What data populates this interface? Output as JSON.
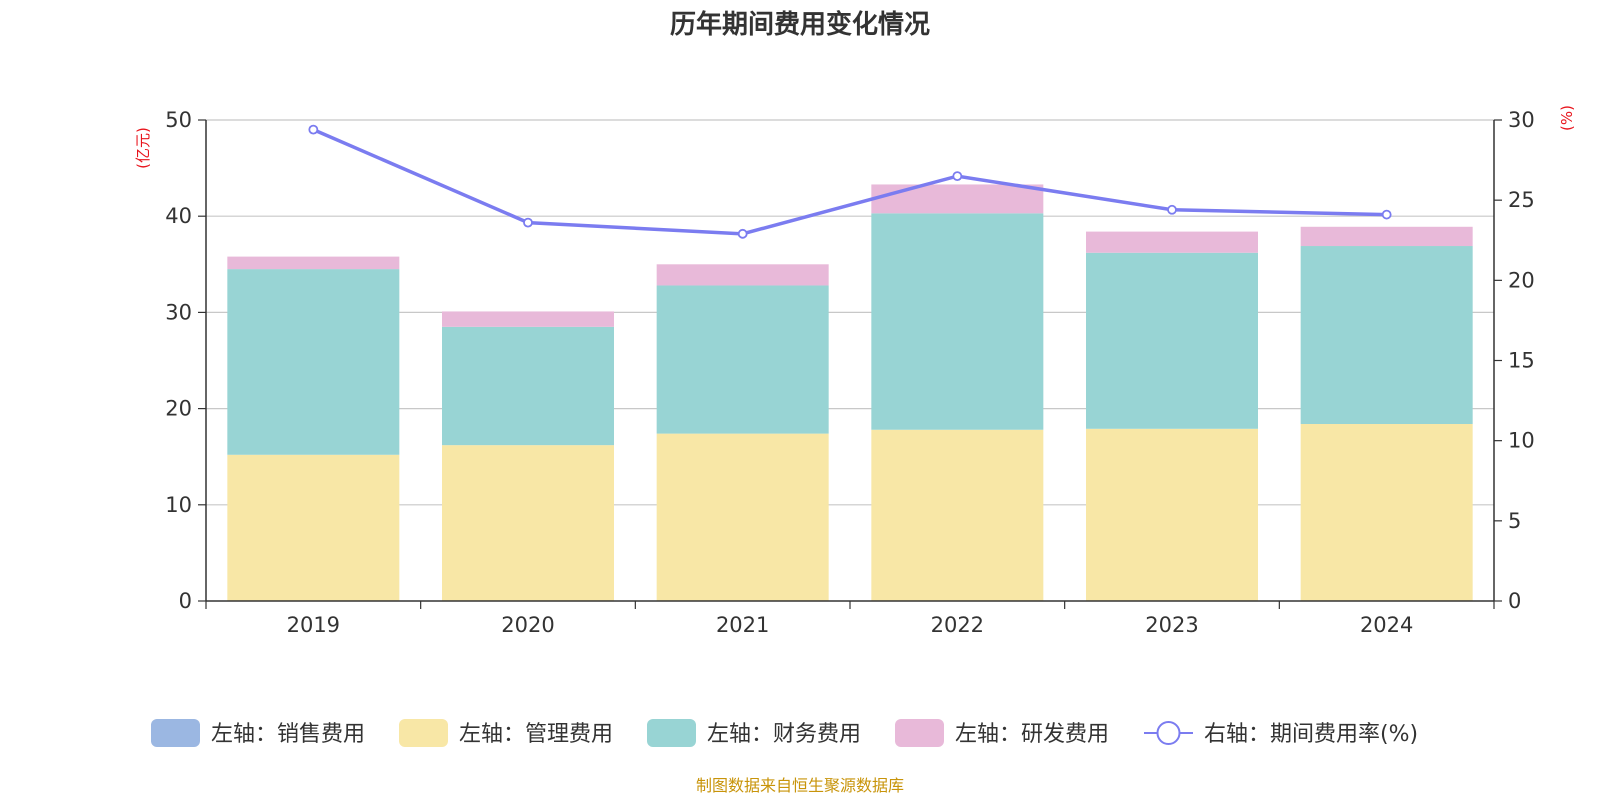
{
  "chart_data": {
    "type": "bar",
    "stacked": true,
    "title": "历年期间费用变化情况",
    "categories": [
      "2019",
      "2020",
      "2021",
      "2022",
      "2023",
      "2024"
    ],
    "left_axis": {
      "unit": "(亿元)",
      "ylim": [
        0,
        50
      ],
      "ticks": [
        "0",
        "10",
        "20",
        "30",
        "40",
        "50"
      ]
    },
    "right_axis": {
      "unit": "(%)",
      "ylim": [
        0,
        30
      ],
      "ticks": [
        "0",
        "5",
        "10",
        "15",
        "20",
        "25",
        "30"
      ]
    },
    "grid": true,
    "legend_position": "bottom",
    "series": [
      {
        "name": "左轴：销售费用",
        "type": "bar",
        "axis": "left",
        "color": "#9bb7e2",
        "values": [
          0,
          0,
          0,
          0,
          0,
          0
        ]
      },
      {
        "name": "左轴：管理费用",
        "type": "bar",
        "axis": "left",
        "color": "#f8e7a6",
        "values": [
          15.2,
          16.2,
          17.4,
          17.8,
          17.9,
          18.4
        ]
      },
      {
        "name": "左轴：财务费用",
        "type": "bar",
        "axis": "left",
        "color": "#98d4d4",
        "values": [
          19.3,
          12.3,
          15.4,
          22.5,
          18.3,
          18.5
        ]
      },
      {
        "name": "左轴：研发费用",
        "type": "bar",
        "axis": "left",
        "color": "#e8b9d9",
        "values": [
          1.3,
          1.6,
          2.2,
          3.0,
          2.2,
          2.0
        ]
      },
      {
        "name": "右轴：期间费用率(%)",
        "type": "line",
        "axis": "right",
        "color": "#7b7cf0",
        "values": [
          29.4,
          23.6,
          22.9,
          26.5,
          24.4,
          24.1
        ]
      }
    ]
  },
  "source_note": "制图数据来自恒生聚源数据库"
}
